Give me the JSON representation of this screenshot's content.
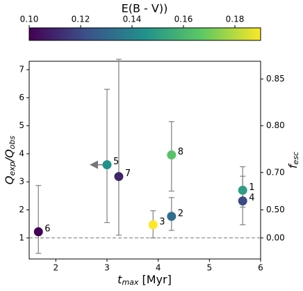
{
  "chart_data": {
    "type": "scatter",
    "colorbar_label": "E(B - V))",
    "clim": [
      0.1,
      0.19
    ],
    "cticks": [
      {
        "value": 0.1,
        "label": "0.10"
      },
      {
        "value": 0.12,
        "label": "0.12"
      },
      {
        "value": 0.14,
        "label": "0.14"
      },
      {
        "value": 0.16,
        "label": "0.16"
      },
      {
        "value": 0.18,
        "label": "0.18"
      }
    ],
    "colormap": "viridis",
    "xlabel": [
      "t",
      "max",
      " [Myr]"
    ],
    "ylabel": [
      "Q",
      "exp",
      "/Q",
      "obs"
    ],
    "y2label": [
      "f",
      "esc"
    ],
    "xlim": [
      1.48,
      6
    ],
    "ylim": [
      0.25,
      7.3
    ],
    "xticks": [
      2,
      3,
      4,
      5,
      6
    ],
    "yticks": [
      1,
      2,
      3,
      4,
      5,
      6,
      7
    ],
    "y2scale": "y = 1/(1 - y2)",
    "y2ticks": [
      {
        "value": 0,
        "label": "0.00"
      },
      {
        "value": 0.5,
        "label": "0.50"
      },
      {
        "value": 0.7,
        "label": "0.70"
      },
      {
        "value": 0.8,
        "label": "0.80"
      },
      {
        "value": 0.85,
        "label": "0.85"
      }
    ],
    "hline": 1,
    "series": [
      {
        "x": [
          1.66,
          3.0,
          3.23,
          3.9,
          4.26,
          4.26,
          5.65,
          5.65
        ],
        "values": [
          1.22,
          3.61,
          3.19,
          1.47,
          1.77,
          3.96,
          2.7,
          2.32
        ],
        "err_low": [
          0.45,
          1.55,
          1.1,
          1.0,
          1.27,
          2.67,
          2.1,
          1.47
        ],
        "err_high": [
          2.87,
          6.3,
          7.37,
          1.97,
          2.44,
          5.15,
          3.54,
          3.2
        ],
        "color_values": [
          0.1,
          0.145,
          0.11,
          0.19,
          0.133,
          0.165,
          0.15,
          0.12
        ],
        "x_upper_limit": [
          false,
          true,
          false,
          false,
          false,
          false,
          false,
          false
        ],
        "point_labels": [
          "6",
          "5",
          "7",
          "3",
          "2",
          "8",
          "1",
          "4"
        ]
      }
    ]
  }
}
